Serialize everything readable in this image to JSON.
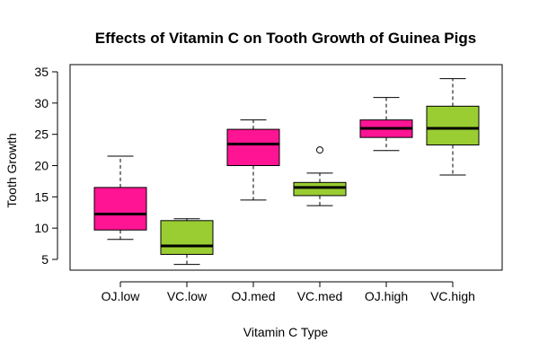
{
  "chart_data": {
    "type": "boxplot",
    "title": "Effects of Vitamin C on Tooth Growth of Guinea Pigs",
    "xlabel": "Vitamin C Type",
    "ylabel": "Tooth Growth",
    "ylim": [
      3,
      35
    ],
    "yticks": [
      5,
      10,
      15,
      20,
      25,
      30,
      35
    ],
    "grid": false,
    "legend": "none",
    "colors": {
      "OJ": "#ff1493",
      "VC": "#9acd32",
      "outline": "#000000"
    },
    "boxes": [
      {
        "category": "OJ.low",
        "group": "OJ",
        "min": 8.2,
        "q1": 9.7,
        "median": 12.25,
        "q3": 16.5,
        "max": 21.5,
        "outliers": []
      },
      {
        "category": "VC.low",
        "group": "VC",
        "min": 4.2,
        "q1": 5.8,
        "median": 7.15,
        "q3": 11.2,
        "max": 11.5,
        "outliers": []
      },
      {
        "category": "OJ.med",
        "group": "OJ",
        "min": 14.5,
        "q1": 20.0,
        "median": 23.45,
        "q3": 25.8,
        "max": 27.3,
        "outliers": []
      },
      {
        "category": "VC.med",
        "group": "VC",
        "min": 13.6,
        "q1": 15.2,
        "median": 16.5,
        "q3": 17.3,
        "max": 18.8,
        "outliers": [
          22.5
        ]
      },
      {
        "category": "OJ.high",
        "group": "OJ",
        "min": 22.4,
        "q1": 24.5,
        "median": 25.95,
        "q3": 27.3,
        "max": 30.9,
        "outliers": []
      },
      {
        "category": "VC.high",
        "group": "VC",
        "min": 18.5,
        "q1": 23.3,
        "median": 25.95,
        "q3": 29.5,
        "max": 33.9,
        "outliers": []
      }
    ]
  }
}
